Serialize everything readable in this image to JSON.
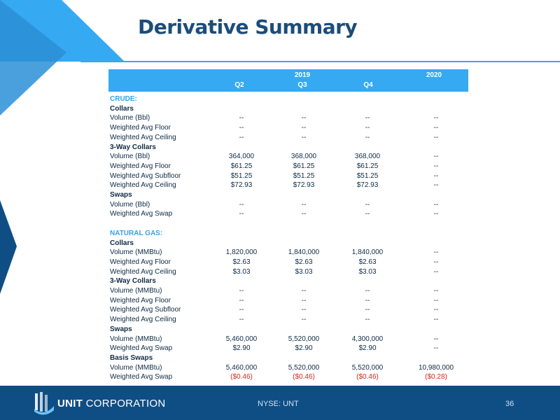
{
  "title": "Derivative Summary",
  "header": {
    "year_2019": "2019",
    "year_2020": "2020",
    "q2": "Q2",
    "q3": "Q3",
    "q4": "Q4"
  },
  "rows": [
    {
      "label": "CRUDE:",
      "kind": "section"
    },
    {
      "label": "Collars",
      "kind": "sub"
    },
    {
      "label": "Volume (Bbl)",
      "values": [
        "--",
        "--",
        "--",
        "--"
      ]
    },
    {
      "label": "Weighted Avg Floor",
      "values": [
        "--",
        "--",
        "--",
        "--"
      ]
    },
    {
      "label": "Weighted Avg Ceiling",
      "values": [
        "--",
        "--",
        "--",
        "--"
      ]
    },
    {
      "label": "3-Way Collars",
      "kind": "sub"
    },
    {
      "label": "Volume (Bbl)",
      "values": [
        "364,000",
        "368,000",
        "368,000",
        "--"
      ]
    },
    {
      "label": "Weighted Avg Floor",
      "values": [
        "$61.25",
        "$61.25",
        "$61.25",
        "--"
      ]
    },
    {
      "label": "Weighted Avg Subfloor",
      "values": [
        "$51.25",
        "$51.25",
        "$51.25",
        "--"
      ]
    },
    {
      "label": "Weighted Avg Ceiling",
      "values": [
        "$72.93",
        "$72.93",
        "$72.93",
        "--"
      ]
    },
    {
      "label": "Swaps",
      "kind": "sub"
    },
    {
      "label": "Volume (Bbl)",
      "values": [
        "--",
        "--",
        "--",
        "--"
      ]
    },
    {
      "label": "Weighted Avg Swap",
      "values": [
        "--",
        "--",
        "--",
        "--"
      ]
    },
    {
      "label": "",
      "kind": "blank"
    },
    {
      "label": "NATURAL GAS:",
      "kind": "section"
    },
    {
      "label": "Collars",
      "kind": "sub"
    },
    {
      "label": "Volume (MMBtu)",
      "values": [
        "1,820,000",
        "1,840,000",
        "1,840,000",
        "--"
      ]
    },
    {
      "label": "Weighted Avg Floor",
      "values": [
        "$2.63",
        "$2.63",
        "$2.63",
        "--"
      ]
    },
    {
      "label": "Weighted Avg Ceiling",
      "values": [
        "$3.03",
        "$3.03",
        "$3.03",
        "--"
      ]
    },
    {
      "label": "3-Way Collars",
      "kind": "sub"
    },
    {
      "label": "Volume (MMBtu)",
      "values": [
        "--",
        "--",
        "--",
        "--"
      ]
    },
    {
      "label": "Weighted Avg Floor",
      "values": [
        "--",
        "--",
        "--",
        "--"
      ]
    },
    {
      "label": "Weighted Avg Subfloor",
      "values": [
        "--",
        "--",
        "--",
        "--"
      ]
    },
    {
      "label": "Weighted Avg Ceiling",
      "values": [
        "--",
        "--",
        "--",
        "--"
      ]
    },
    {
      "label": "Swaps",
      "kind": "sub"
    },
    {
      "label": "Volume (MMBtu)",
      "values": [
        "5,460,000",
        "5,520,000",
        "4,300,000",
        "--"
      ]
    },
    {
      "label": "Weighted Avg Swap",
      "values": [
        "$2.90",
        "$2.90",
        "$2.90",
        "--"
      ]
    },
    {
      "label": "Basis Swaps",
      "kind": "sub"
    },
    {
      "label": "Volume (MMBtu)",
      "values": [
        "5,460,000",
        "5,520,000",
        "5,520,000",
        "10,980,000"
      ]
    },
    {
      "label": "Weighted Avg Swap",
      "values": [
        "($0.46)",
        "($0.46)",
        "($0.46)",
        "($0.28)"
      ],
      "negative": true
    }
  ],
  "footer": {
    "logo_bold": "UNIT",
    "logo_rest": "CORPORATION",
    "ticker": "NYSE: UNT",
    "page_number": "36"
  },
  "colors": {
    "title": "#1c4d7a",
    "header_band": "#35a9f2",
    "section_label": "#34a3e8",
    "negative_value": "#d9261c",
    "footer": "#0f4e85"
  }
}
